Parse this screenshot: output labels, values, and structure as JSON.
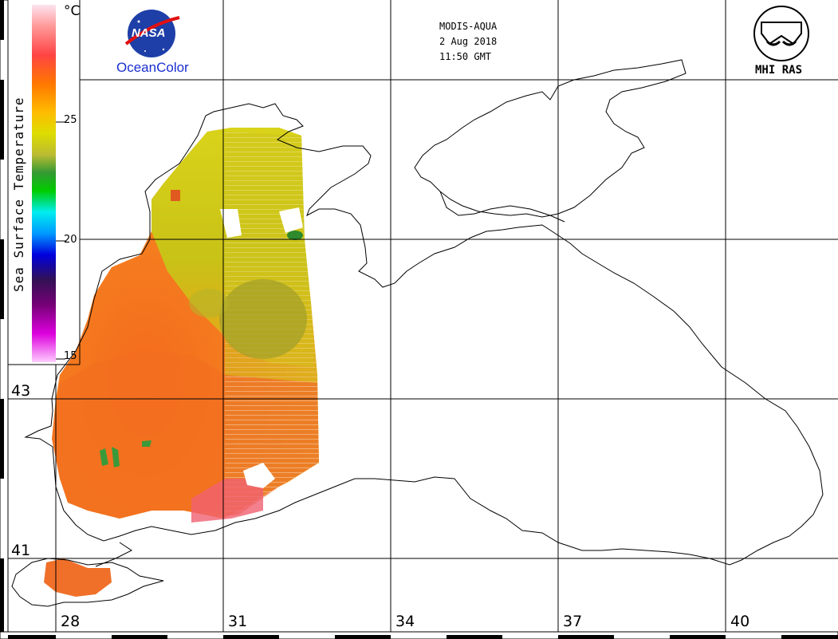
{
  "header": {
    "sensor": "MODIS-AQUA",
    "date": "2 Aug 2018",
    "time": "11:50 GMT"
  },
  "logos": {
    "nasa_text": "NASA",
    "oceancolor_text": "OceanColor",
    "mhi_text": "MHI RAS"
  },
  "colorbar": {
    "title": "Sea Surface Temperature",
    "unit": "°C",
    "ticks": [
      "25",
      "20",
      "15"
    ],
    "colors": [
      "#f9d0e8",
      "#f77",
      "#f33",
      "#f60",
      "#fa0",
      "#dd0",
      "#bb3",
      "#393",
      "#0c0",
      "#0cc",
      "#09f",
      "#00c",
      "#306",
      "#606",
      "#c0c",
      "#f8f"
    ]
  },
  "axes": {
    "longitudes": [
      "28",
      "31",
      "34",
      "37",
      "40"
    ],
    "latitudes": [
      "43",
      "41"
    ]
  }
}
